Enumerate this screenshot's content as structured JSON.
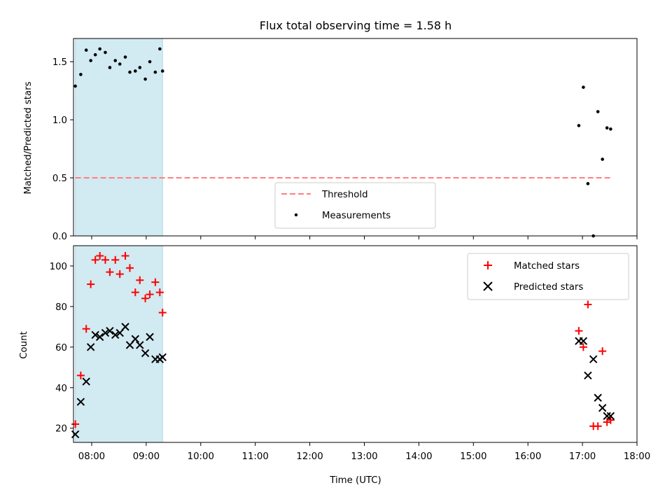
{
  "title": "Flux total observing time = 1.58 h",
  "colors": {
    "shade": "#add8e6",
    "threshold": "#ff7f7f",
    "measurement": "#000000",
    "matched": "#ff0000",
    "predicted": "#000000"
  },
  "chart_data": [
    {
      "type": "scatter",
      "ylabel": "Matched/Predicted stars",
      "ylim": [
        0,
        1.7
      ],
      "yticks": [
        "0.0",
        "0.5",
        "1.0",
        "1.5"
      ],
      "xlim": [
        "07:40",
        "18:00"
      ],
      "shaded_span": [
        "07:42",
        "09:18"
      ],
      "threshold": {
        "name": "Threshold",
        "value": 0.5,
        "x_range": [
          "07:42",
          "17:31"
        ]
      },
      "series": [
        {
          "name": "Measurements",
          "x": [
            "07:42",
            "07:48",
            "07:54",
            "07:59",
            "08:04",
            "08:09",
            "08:15",
            "08:20",
            "08:26",
            "08:31",
            "08:37",
            "08:42",
            "08:48",
            "08:53",
            "08:59",
            "09:04",
            "09:10",
            "09:15",
            "09:18",
            "16:56",
            "17:01",
            "17:06",
            "17:12",
            "17:17",
            "17:22",
            "17:27",
            "17:31"
          ],
          "y": [
            1.29,
            1.39,
            1.6,
            1.51,
            1.56,
            1.61,
            1.58,
            1.45,
            1.51,
            1.48,
            1.54,
            1.41,
            1.42,
            1.45,
            1.35,
            1.5,
            1.41,
            1.61,
            1.42,
            0.95,
            1.28,
            0.45,
            0.0,
            1.07,
            0.66,
            0.93,
            0.92
          ]
        }
      ],
      "legend": "lower-center"
    },
    {
      "type": "scatter",
      "xlabel": "Time (UTC)",
      "ylabel": "Count",
      "ylim": [
        13,
        110
      ],
      "yticks": [
        "20",
        "40",
        "60",
        "80",
        "100"
      ],
      "xlim": [
        "07:40",
        "18:00"
      ],
      "xticks": [
        "08:00",
        "09:00",
        "10:00",
        "11:00",
        "12:00",
        "13:00",
        "14:00",
        "15:00",
        "16:00",
        "17:00",
        "18:00"
      ],
      "shaded_span": [
        "07:42",
        "09:18"
      ],
      "series": [
        {
          "name": "Matched stars",
          "x": [
            "07:42",
            "07:48",
            "07:54",
            "07:59",
            "08:04",
            "08:09",
            "08:15",
            "08:20",
            "08:26",
            "08:31",
            "08:37",
            "08:42",
            "08:48",
            "08:53",
            "08:59",
            "09:04",
            "09:10",
            "09:15",
            "09:18",
            "16:56",
            "17:01",
            "17:06",
            "17:12",
            "17:17",
            "17:22",
            "17:27",
            "17:31"
          ],
          "y": [
            22,
            46,
            69,
            91,
            103,
            105,
            103,
            97,
            103,
            96,
            105,
            99,
            87,
            93,
            84,
            86,
            92,
            87,
            77,
            68,
            60,
            81,
            21,
            21,
            58,
            23,
            24
          ]
        },
        {
          "name": "Predicted stars",
          "x": [
            "07:42",
            "07:48",
            "07:54",
            "07:59",
            "08:04",
            "08:09",
            "08:15",
            "08:20",
            "08:26",
            "08:31",
            "08:37",
            "08:42",
            "08:48",
            "08:53",
            "08:59",
            "09:04",
            "09:10",
            "09:15",
            "09:18",
            "16:56",
            "17:01",
            "17:06",
            "17:12",
            "17:17",
            "17:22",
            "17:27",
            "17:31"
          ],
          "y": [
            17,
            33,
            43,
            60,
            66,
            65,
            67,
            68,
            66,
            67,
            70,
            61,
            64,
            61,
            57,
            65,
            54,
            54,
            55,
            63,
            63,
            46,
            54,
            35,
            30,
            26,
            26
          ]
        }
      ],
      "legend": "upper-right"
    }
  ]
}
